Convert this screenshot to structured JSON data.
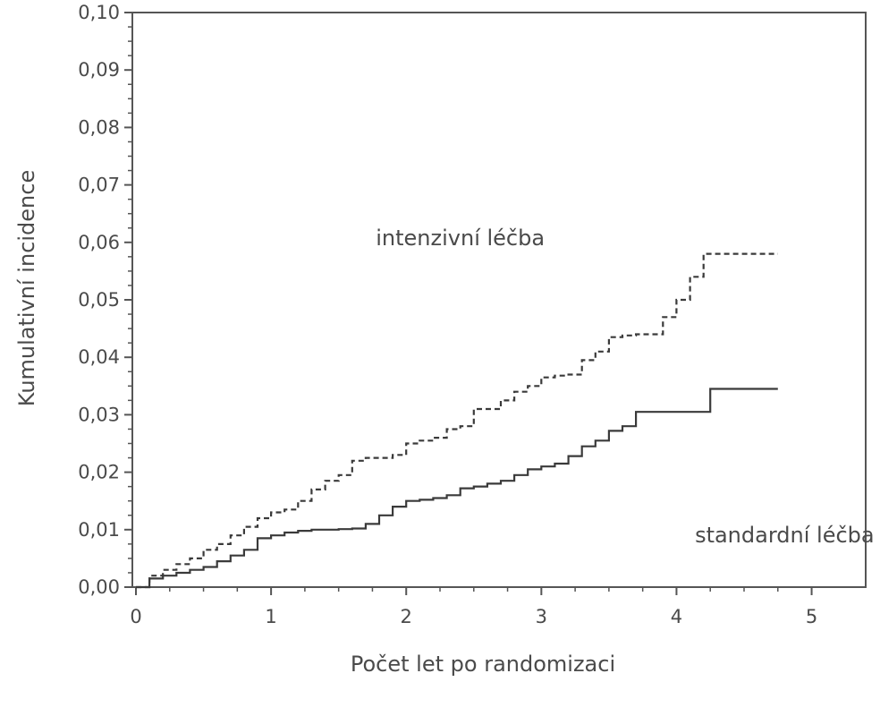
{
  "chart_data": {
    "type": "line",
    "xlabel": "Počet let po randomizaci",
    "ylabel": "Kumulativní incidence",
    "xlim": [
      0,
      5.4
    ],
    "ylim": [
      0,
      0.1
    ],
    "xticks": [
      0,
      1,
      2,
      3,
      4,
      5
    ],
    "xtick_labels": [
      "0",
      "1",
      "2",
      "3",
      "4",
      "5"
    ],
    "yticks": [
      0,
      0.01,
      0.02,
      0.03,
      0.04,
      0.05,
      0.06,
      0.07,
      0.08,
      0.09,
      0.1
    ],
    "ytick_labels": [
      "0,00",
      "0,01",
      "0,02",
      "0,03",
      "0,04",
      "0,05",
      "0,06",
      "0,07",
      "0,08",
      "0,09",
      "0,10"
    ],
    "grid": false,
    "series": [
      {
        "label": "intenzivní léčba",
        "line_style": "dashed",
        "x": [
          0,
          0.1,
          0.2,
          0.3,
          0.4,
          0.5,
          0.6,
          0.7,
          0.8,
          0.9,
          1.0,
          1.1,
          1.2,
          1.3,
          1.4,
          1.5,
          1.6,
          1.7,
          1.8,
          1.9,
          2.0,
          2.1,
          2.2,
          2.3,
          2.4,
          2.5,
          2.6,
          2.7,
          2.8,
          2.9,
          3.0,
          3.1,
          3.2,
          3.3,
          3.4,
          3.5,
          3.6,
          3.7,
          3.8,
          3.9,
          4.0,
          4.1,
          4.2,
          4.75
        ],
        "y": [
          0,
          0.002,
          0.003,
          0.004,
          0.005,
          0.0065,
          0.0075,
          0.009,
          0.0105,
          0.012,
          0.013,
          0.0135,
          0.015,
          0.017,
          0.0185,
          0.0195,
          0.022,
          0.0225,
          0.0225,
          0.023,
          0.025,
          0.0255,
          0.026,
          0.0275,
          0.028,
          0.031,
          0.031,
          0.0325,
          0.034,
          0.035,
          0.0365,
          0.0368,
          0.037,
          0.0395,
          0.041,
          0.0435,
          0.0438,
          0.044,
          0.044,
          0.047,
          0.05,
          0.054,
          0.058,
          0.058
        ]
      },
      {
        "label": "standardní léčba",
        "line_style": "solid",
        "x": [
          0,
          0.1,
          0.2,
          0.3,
          0.4,
          0.5,
          0.6,
          0.7,
          0.8,
          0.9,
          1.0,
          1.1,
          1.2,
          1.3,
          1.4,
          1.5,
          1.6,
          1.7,
          1.8,
          1.9,
          2.0,
          2.1,
          2.2,
          2.3,
          2.4,
          2.5,
          2.6,
          2.7,
          2.8,
          2.9,
          3.0,
          3.1,
          3.2,
          3.3,
          3.4,
          3.5,
          3.6,
          3.7,
          3.8,
          3.9,
          4.0,
          4.1,
          4.2,
          4.25,
          4.75
        ],
        "y": [
          0,
          0.0015,
          0.002,
          0.0025,
          0.003,
          0.0035,
          0.0045,
          0.0055,
          0.0065,
          0.0085,
          0.009,
          0.0095,
          0.0098,
          0.01,
          0.01,
          0.0101,
          0.0102,
          0.011,
          0.0125,
          0.014,
          0.015,
          0.0152,
          0.0155,
          0.016,
          0.0172,
          0.0175,
          0.018,
          0.0185,
          0.0195,
          0.0205,
          0.021,
          0.0215,
          0.0228,
          0.0245,
          0.0255,
          0.0272,
          0.028,
          0.0305,
          0.0305,
          0.0305,
          0.0305,
          0.0305,
          0.0305,
          0.0345,
          0.0345
        ]
      }
    ],
    "annotations": [
      {
        "text": "intenzivní léčba",
        "x": 2.4,
        "y": 0.0595
      },
      {
        "text": "standardní léčba",
        "x": 4.8,
        "y": 0.0078
      }
    ]
  }
}
